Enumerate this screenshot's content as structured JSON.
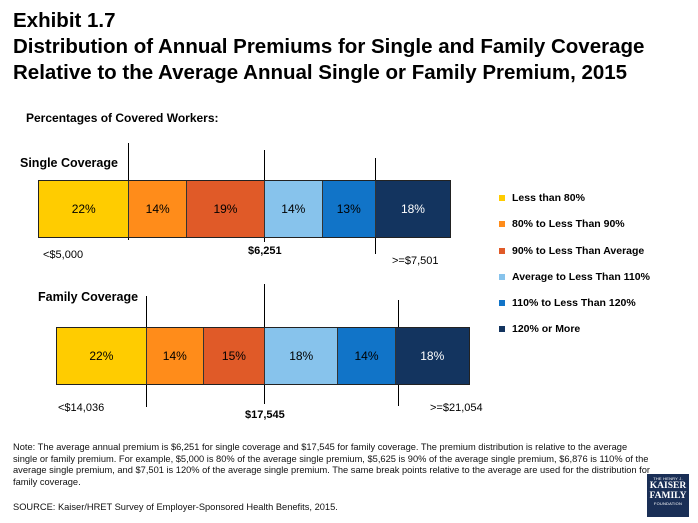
{
  "title": {
    "exhibit": "Exhibit 1.7",
    "line1": "Distribution of Annual Premiums for Single and Family Coverage",
    "line2": "Relative to the Average Annual Single or Family Premium, 2015"
  },
  "subtitle": "Percentages of Covered Workers:",
  "colors": {
    "less_than_80": "#ffcc00",
    "80_to_90": "#ff8c1a",
    "90_to_avg": "#e05a28",
    "avg_to_110": "#87c3ec",
    "110_to_120": "#1174c8",
    "120_plus": "#13345f"
  },
  "legend": [
    {
      "label": "Less than 80%",
      "color": "#ffcc00"
    },
    {
      "label": "80% to Less Than 90%",
      "color": "#ff8c1a"
    },
    {
      "label": "90% to Less Than Average",
      "color": "#e05a28"
    },
    {
      "label": "Average to Less Than 110%",
      "color": "#87c3ec"
    },
    {
      "label": "110% to Less Than 120%",
      "color": "#1174c8"
    },
    {
      "label": "120% or More",
      "color": "#13345f"
    }
  ],
  "chart_data": [
    {
      "type": "bar",
      "orientation": "horizontal-stacked",
      "title": "Single Coverage",
      "categories": [
        "Less than 80%",
        "80% to Less Than 90%",
        "90% to Less Than Average",
        "Average to Less Than 110%",
        "110% to Less Than 120%",
        "120% or More"
      ],
      "values": [
        22,
        14,
        19,
        14,
        13,
        18
      ],
      "value_labels": [
        "22%",
        "14%",
        "19%",
        "14%",
        "13%",
        "18%"
      ],
      "markers": {
        "low": "<$5,000",
        "avg": "$6,251",
        "high": ">=$7,501"
      }
    },
    {
      "type": "bar",
      "orientation": "horizontal-stacked",
      "title": "Family Coverage",
      "categories": [
        "Less than 80%",
        "80% to Less Than 90%",
        "90% to Less Than Average",
        "Average to Less Than 110%",
        "110% to Less Than 120%",
        "120% or More"
      ],
      "values": [
        22,
        14,
        15,
        18,
        14,
        18
      ],
      "value_labels": [
        "22%",
        "14%",
        "15%",
        "18%",
        "14%",
        "18%"
      ],
      "markers": {
        "low": "<$14,036",
        "avg": "$17,545",
        "high": ">=$21,054"
      }
    }
  ],
  "note": "Note: The average annual premium is $6,251 for single coverage and $17,545 for family coverage.  The premium distribution is relative to the average single or family premium.  For example, $5,000 is 80% of the average single premium, $5,625 is 90% of the average single premium, $6,876 is 110% of the average single premium, and $7,501 is 120% of the average single premium.  The same break points relative to the average are used for the distribution for family coverage.",
  "source": "SOURCE: Kaiser/HRET Survey of Employer-Sponsored Health Benefits, 2015.",
  "logo": {
    "top": "THE HENRY J.",
    "line1": "KAISER",
    "line2": "FAMILY",
    "bottom": "FOUNDATION"
  }
}
